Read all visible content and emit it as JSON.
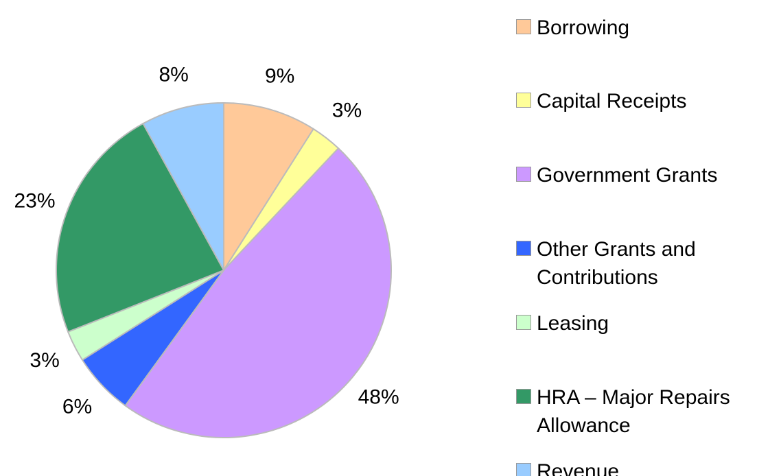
{
  "chart_data": {
    "type": "pie",
    "categories": [
      "Borrowing",
      "Capital Receipts",
      "Government Grants",
      "Other Grants and Contributions",
      "Leasing",
      "HRA – Major Repairs Allowance",
      "Revenue"
    ],
    "values": [
      9,
      3,
      48,
      6,
      3,
      23,
      8
    ],
    "value_labels": [
      "9%",
      "3%",
      "48%",
      "6%",
      "3%",
      "23%",
      "8%"
    ],
    "colors": [
      "#ffc999",
      "#ffff99",
      "#cc99ff",
      "#3366ff",
      "#ccffcc",
      "#339966",
      "#99ccff"
    ],
    "legend": "right"
  }
}
